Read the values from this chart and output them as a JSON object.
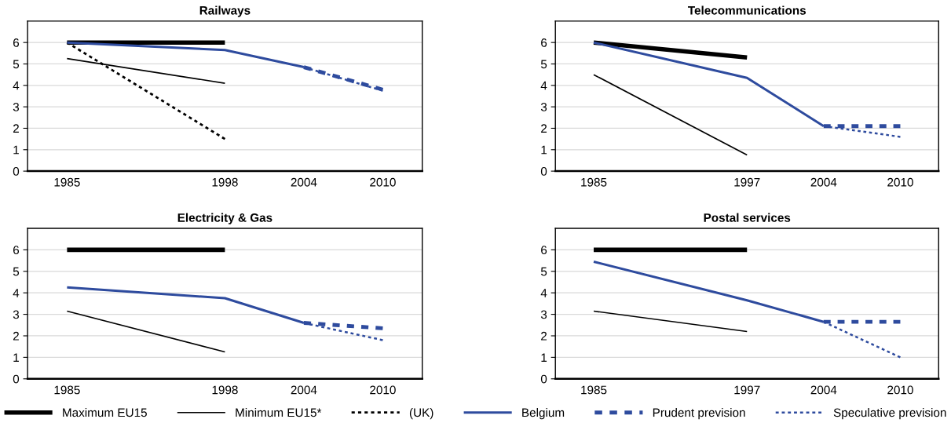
{
  "chart_data": [
    {
      "type": "line",
      "title": "Railways",
      "categories": [
        "1985",
        null,
        "1998",
        "2004",
        "2010"
      ],
      "ylim": [
        0,
        7
      ],
      "yticks": [
        0,
        1,
        2,
        3,
        4,
        5,
        6
      ],
      "grid": "y",
      "legend": "bottom",
      "series": [
        {
          "name": "Maximum EU15",
          "color": "#000000",
          "line_style": "solid",
          "values": [
            6,
            null,
            6,
            null,
            null
          ]
        },
        {
          "name": "Minimum EU15*",
          "color": "#000000",
          "line_style": "solid",
          "values": [
            5.25,
            null,
            4.1,
            null,
            null
          ]
        },
        {
          "name": "(UK)",
          "color": "#000000",
          "line_style": "dotted",
          "values": [
            6,
            null,
            1.5,
            null,
            null
          ]
        },
        {
          "name": "Belgium",
          "color": "#2e4b9e",
          "line_style": "solid",
          "values": [
            6,
            null,
            5.65,
            4.85,
            null
          ]
        },
        {
          "name": "Prudent prevision",
          "color": "#2e4b9e",
          "line_style": "dashed",
          "values": [
            null,
            null,
            null,
            4.85,
            3.8
          ]
        },
        {
          "name": "Speculative prevision",
          "color": "#2e4b9e",
          "line_style": "dotted",
          "values": [
            null,
            null,
            null,
            4.85,
            3.75
          ]
        }
      ]
    },
    {
      "type": "line",
      "title": "Telecommunications",
      "categories": [
        "1985",
        null,
        "1997",
        "2004",
        "2010"
      ],
      "ylim": [
        0,
        7
      ],
      "yticks": [
        0,
        1,
        2,
        3,
        4,
        5,
        6
      ],
      "grid": "y",
      "series": [
        {
          "color": "#000000",
          "line_style": "solid",
          "values": [
            6,
            null,
            5.3,
            null,
            null
          ]
        },
        {
          "color": "#000000",
          "line_style": "solid",
          "values": [
            4.5,
            null,
            0.75,
            null,
            null
          ]
        },
        {
          "color": "#2e4b9e",
          "line_style": "solid",
          "values": [
            6,
            null,
            4.35,
            2.1,
            null
          ]
        },
        {
          "color": "#2e4b9e",
          "line_style": "dashed",
          "values": [
            null,
            null,
            null,
            2.1,
            2.1
          ]
        },
        {
          "color": "#2e4b9e",
          "line_style": "dotted",
          "values": [
            null,
            null,
            null,
            2.1,
            1.6
          ]
        }
      ]
    },
    {
      "type": "line",
      "title": "Electricity & Gas",
      "categories": [
        "1985",
        null,
        "1998",
        "2004",
        "2010"
      ],
      "ylim": [
        0,
        7
      ],
      "yticks": [
        0,
        1,
        2,
        3,
        4,
        5,
        6
      ],
      "grid": "y",
      "series": [
        {
          "color": "#000000",
          "line_style": "solid",
          "values": [
            6,
            null,
            6,
            null,
            null
          ]
        },
        {
          "color": "#000000",
          "line_style": "solid",
          "values": [
            3.15,
            null,
            1.25,
            null,
            null
          ]
        },
        {
          "color": "#2e4b9e",
          "line_style": "solid",
          "values": [
            4.25,
            null,
            3.75,
            2.6,
            null
          ]
        },
        {
          "color": "#2e4b9e",
          "line_style": "dashed",
          "values": [
            null,
            null,
            null,
            2.6,
            2.35
          ]
        },
        {
          "color": "#2e4b9e",
          "line_style": "dotted",
          "values": [
            null,
            null,
            null,
            2.6,
            1.8
          ]
        }
      ]
    },
    {
      "type": "line",
      "title": "Postal services",
      "categories": [
        "1985",
        null,
        "1997",
        "2004",
        "2010"
      ],
      "ylim": [
        0,
        7
      ],
      "yticks": [
        0,
        1,
        2,
        3,
        4,
        5,
        6
      ],
      "grid": "y",
      "series": [
        {
          "color": "#000000",
          "line_style": "solid",
          "values": [
            6,
            null,
            6,
            null,
            null
          ]
        },
        {
          "color": "#000000",
          "line_style": "solid",
          "values": [
            3.15,
            null,
            2.2,
            null,
            null
          ]
        },
        {
          "color": "#2e4b9e",
          "line_style": "solid",
          "values": [
            5.45,
            null,
            3.65,
            2.65,
            null
          ]
        },
        {
          "color": "#2e4b9e",
          "line_style": "dashed",
          "values": [
            null,
            null,
            null,
            2.65,
            2.65
          ]
        },
        {
          "color": "#2e4b9e",
          "line_style": "dotted",
          "values": [
            null,
            null,
            null,
            2.65,
            1.0
          ]
        }
      ]
    }
  ]
}
